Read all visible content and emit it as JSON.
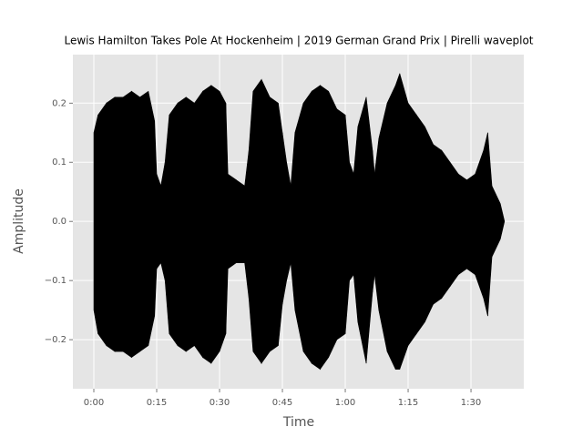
{
  "chart_data": {
    "type": "waveplot",
    "title": "Lewis Hamilton Takes Pole At Hockenheim | 2019 German Grand Prix | Pirelli waveplot",
    "x_label": "Time",
    "y_label": "Amplitude",
    "x": [
      0,
      1,
      3,
      5,
      7,
      9,
      11,
      13,
      14.5,
      15,
      16,
      17,
      18,
      20,
      22,
      24,
      26,
      28,
      30,
      31.5,
      32,
      34,
      36,
      37,
      38,
      40,
      42,
      44,
      45,
      46,
      47,
      48,
      50,
      52,
      54,
      56,
      58,
      60,
      61,
      62,
      63,
      65,
      66.5,
      67,
      68,
      70,
      72,
      73,
      75,
      77,
      79,
      81,
      83,
      85,
      87,
      89,
      91,
      93,
      94,
      95,
      97,
      98
    ],
    "series": [
      {
        "color": "#000000",
        "values": [
          0.15,
          0.18,
          0.2,
          0.21,
          0.21,
          0.22,
          0.21,
          0.22,
          0.17,
          0.08,
          0.06,
          0.1,
          0.18,
          0.2,
          0.21,
          0.2,
          0.22,
          0.23,
          0.22,
          0.2,
          0.08,
          0.07,
          0.06,
          0.12,
          0.22,
          0.24,
          0.21,
          0.2,
          0.15,
          0.1,
          0.06,
          0.15,
          0.2,
          0.22,
          0.23,
          0.22,
          0.19,
          0.18,
          0.1,
          0.08,
          0.16,
          0.21,
          0.12,
          0.08,
          0.14,
          0.2,
          0.23,
          0.25,
          0.2,
          0.18,
          0.16,
          0.13,
          0.12,
          0.1,
          0.08,
          0.07,
          0.08,
          0.12,
          0.15,
          0.06,
          0.03,
          0.0
        ]
      },
      {
        "color": "#000000",
        "values": [
          -0.15,
          -0.19,
          -0.21,
          -0.22,
          -0.22,
          -0.23,
          -0.22,
          -0.21,
          -0.16,
          -0.08,
          -0.07,
          -0.1,
          -0.19,
          -0.21,
          -0.22,
          -0.21,
          -0.23,
          -0.24,
          -0.22,
          -0.19,
          -0.08,
          -0.07,
          -0.07,
          -0.13,
          -0.22,
          -0.24,
          -0.22,
          -0.21,
          -0.14,
          -0.1,
          -0.07,
          -0.15,
          -0.22,
          -0.24,
          -0.25,
          -0.23,
          -0.2,
          -0.19,
          -0.1,
          -0.09,
          -0.17,
          -0.24,
          -0.12,
          -0.09,
          -0.15,
          -0.22,
          -0.25,
          -0.25,
          -0.21,
          -0.19,
          -0.17,
          -0.14,
          -0.13,
          -0.11,
          -0.09,
          -0.08,
          -0.09,
          -0.13,
          -0.16,
          -0.06,
          -0.03,
          0.0
        ]
      }
    ],
    "xlim": [
      -5,
      102.6
    ],
    "ylim": [
      -0.283,
      0.282
    ],
    "xticks": [
      {
        "value": 0,
        "label": "0:00"
      },
      {
        "value": 15,
        "label": "0:15"
      },
      {
        "value": 30,
        "label": "0:30"
      },
      {
        "value": 45,
        "label": "0:45"
      },
      {
        "value": 60,
        "label": "1:00"
      },
      {
        "value": 75,
        "label": "1:15"
      },
      {
        "value": 90,
        "label": "1:30"
      }
    ],
    "yticks": [
      {
        "value": -0.2,
        "label": "−0.2"
      },
      {
        "value": -0.1,
        "label": "−0.1"
      },
      {
        "value": 0,
        "label": "0.0"
      },
      {
        "value": 0.1,
        "label": "0.1"
      },
      {
        "value": 0.2,
        "label": "0.2"
      }
    ],
    "grid": true
  }
}
